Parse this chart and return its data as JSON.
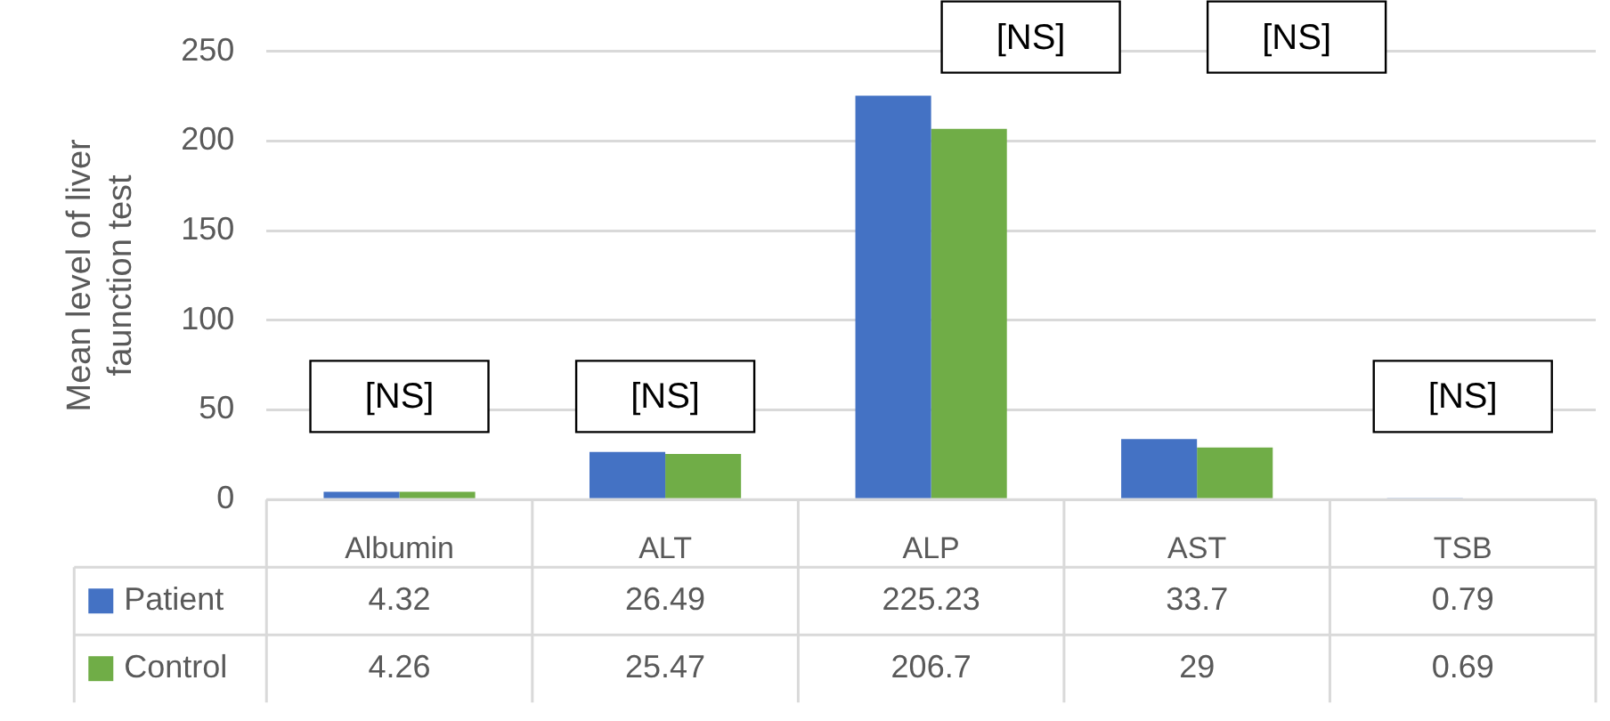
{
  "chart_data": {
    "type": "bar",
    "ylabel": "Mean level of liver faunction test",
    "categories": [
      "Albumin",
      "ALT",
      "ALP",
      "AST",
      "TSB"
    ],
    "series": [
      {
        "name": "Patient",
        "color": "#4472c4",
        "values": [
          4.32,
          26.49,
          225.23,
          33.7,
          0.79
        ]
      },
      {
        "name": "Control",
        "color": "#70ad47",
        "values": [
          4.26,
          25.47,
          206.7,
          29,
          0.69
        ]
      }
    ],
    "ylim": [
      0,
      250
    ],
    "yticks": [
      0,
      50,
      100,
      150,
      200,
      250
    ],
    "grid": "y",
    "legend": "bottom",
    "data_labels": true,
    "annotations": [
      "[NS]",
      "[NS]",
      "[NS]",
      "[NS]",
      "[NS]"
    ]
  }
}
